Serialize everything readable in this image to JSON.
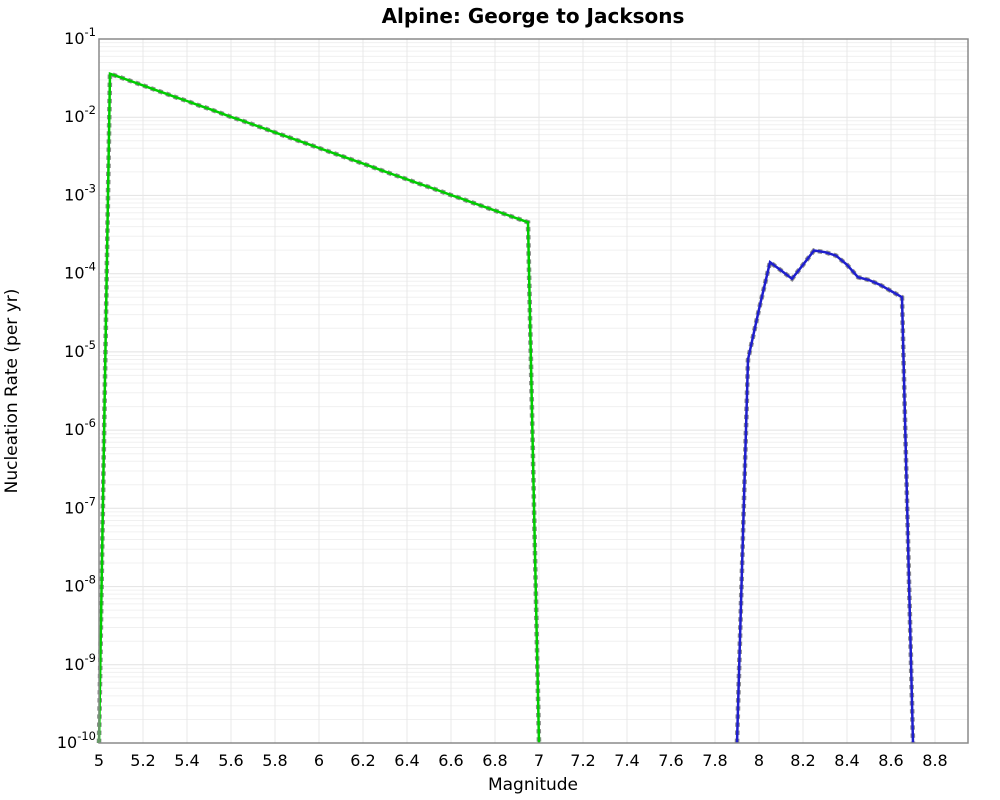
{
  "chart_data": {
    "type": "line",
    "title": "Alpine: George to Jacksons",
    "xlabel": "Magnitude",
    "ylabel": "Nucleation Rate (per yr)",
    "x_scale": "linear",
    "y_scale": "log",
    "xlim": [
      5.0,
      8.95
    ],
    "ylim": [
      1e-10,
      0.1
    ],
    "x_tick_labels": [
      "5",
      "5.2",
      "5.4",
      "5.6",
      "5.8",
      "6",
      "6.2",
      "6.4",
      "6.6",
      "6.8",
      "7",
      "7.2",
      "7.4",
      "7.6",
      "7.8",
      "8",
      "8.2",
      "8.4",
      "8.6",
      "8.8"
    ],
    "y_tick_exponents": [
      -1,
      -2,
      -3,
      -4,
      -5,
      -6,
      -7,
      -8,
      -9,
      -10
    ],
    "grid": true,
    "legend": false,
    "grid_minor_on": true,
    "underlay_style": "gray-dashed",
    "series": [
      {
        "name": "green-curve",
        "color": "#00cc00",
        "underlay_color": "#8c8c8c",
        "points": [
          [
            5.0,
            1e-10
          ],
          [
            5.05,
            0.036
          ],
          [
            5.1,
            0.0321
          ],
          [
            5.15,
            0.0286
          ],
          [
            5.2,
            0.0255
          ],
          [
            5.25,
            0.0227
          ],
          [
            5.3,
            0.0202
          ],
          [
            5.35,
            0.018
          ],
          [
            5.4,
            0.0161
          ],
          [
            5.45,
            0.0143
          ],
          [
            5.5,
            0.0128
          ],
          [
            5.55,
            0.0114
          ],
          [
            5.6,
            0.0101
          ],
          [
            5.65,
            0.00905
          ],
          [
            5.7,
            0.00806
          ],
          [
            5.75,
            0.00719
          ],
          [
            5.8,
            0.0064
          ],
          [
            5.85,
            0.00571
          ],
          [
            5.9,
            0.00509
          ],
          [
            5.95,
            0.00453
          ],
          [
            6.0,
            0.00404
          ],
          [
            6.05,
            0.0036
          ],
          [
            6.1,
            0.00321
          ],
          [
            6.15,
            0.00286
          ],
          [
            6.2,
            0.00255
          ],
          [
            6.25,
            0.00227
          ],
          [
            6.3,
            0.00202
          ],
          [
            6.35,
            0.0018
          ],
          [
            6.4,
            0.00161
          ],
          [
            6.45,
            0.00143
          ],
          [
            6.5,
            0.00128
          ],
          [
            6.55,
            0.00114
          ],
          [
            6.6,
            0.00101
          ],
          [
            6.65,
            0.000905
          ],
          [
            6.7,
            0.000806
          ],
          [
            6.75,
            0.000719
          ],
          [
            6.8,
            0.00064
          ],
          [
            6.85,
            0.000571
          ],
          [
            6.9,
            0.000509
          ],
          [
            6.95,
            0.000453
          ],
          [
            7.0,
            1e-10
          ]
        ]
      },
      {
        "name": "blue-curve",
        "color": "#1f1fcc",
        "underlay_color": "#8c8c8c",
        "points": [
          [
            7.9,
            1e-10
          ],
          [
            7.95,
            8e-06
          ],
          [
            8.0,
            3.5e-05
          ],
          [
            8.05,
            0.00014
          ],
          [
            8.1,
            0.00011
          ],
          [
            8.15,
            8.6e-05
          ],
          [
            8.2,
            0.00013
          ],
          [
            8.25,
            0.000198
          ],
          [
            8.3,
            0.000188
          ],
          [
            8.35,
            0.00017
          ],
          [
            8.4,
            0.00013
          ],
          [
            8.45,
            9e-05
          ],
          [
            8.5,
            8.3e-05
          ],
          [
            8.55,
            7.2e-05
          ],
          [
            8.6,
            6e-05
          ],
          [
            8.65,
            5e-05
          ],
          [
            8.7,
            1e-10
          ]
        ]
      }
    ]
  }
}
